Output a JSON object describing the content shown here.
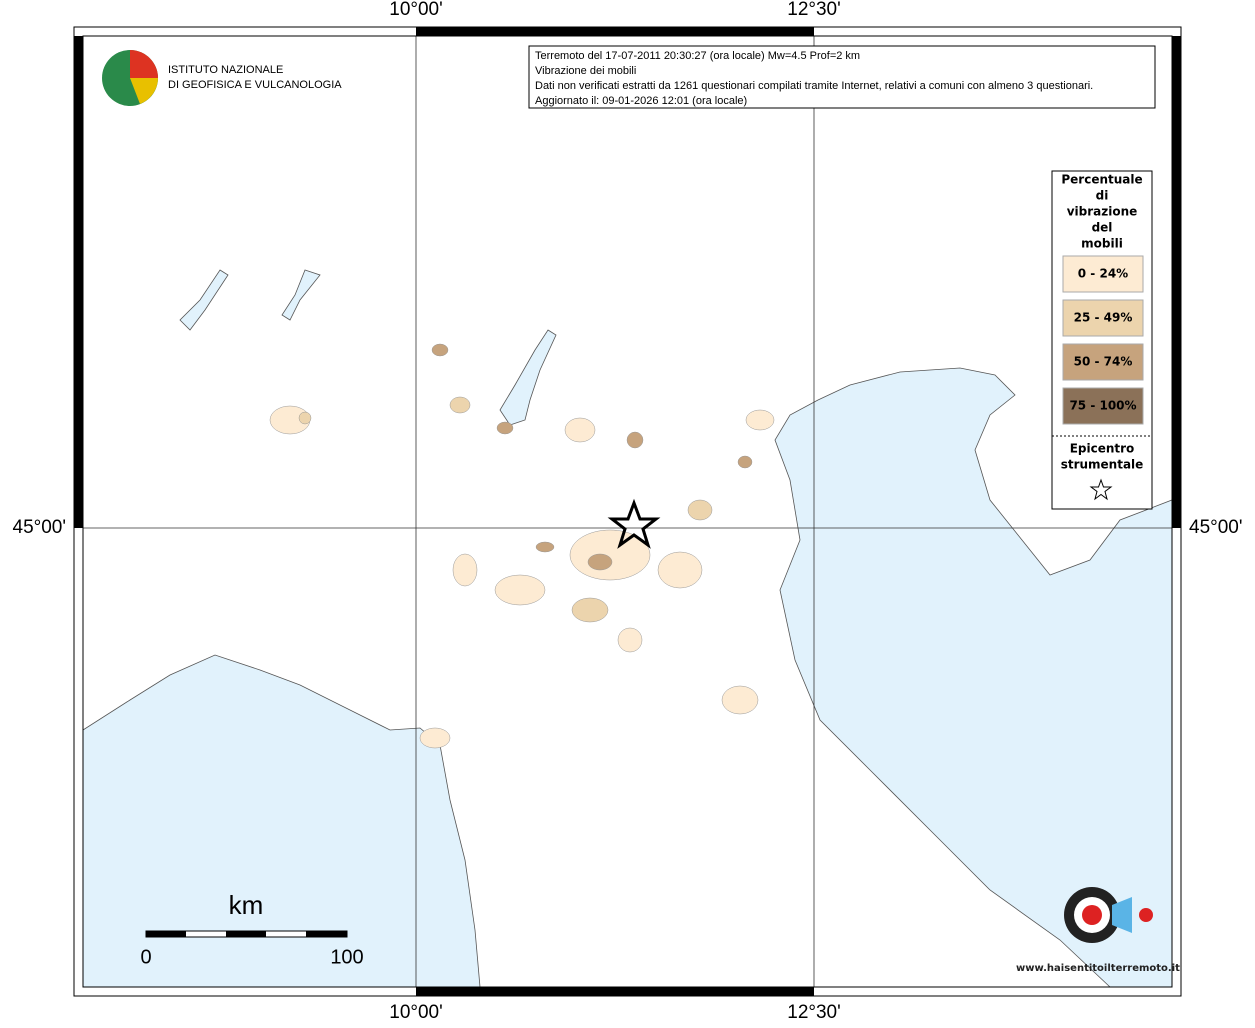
{
  "map": {
    "lon_labels": [
      "10°00'",
      "12°30'"
    ],
    "lat_label": "45°00'",
    "info": [
      "Terremoto del 17-07-2011 20:30:27 (ora locale) Mw=4.5 Prof=2 km",
      "Vibrazione dei mobili",
      "Dati non verificati estratti da 1261 questionari compilati tramite Internet, relativi a comuni con almeno 3 questionari.",
      "Aggiornato il: 09-01-2026 12:01 (ora locale)"
    ],
    "logo_lines": [
      "ISTITUTO NAZIONALE",
      "DI GEOFISICA E VULCANOLOGIA"
    ],
    "legend": {
      "title_lines": [
        "Percentuale",
        "di",
        "vibrazione",
        "del",
        "mobili"
      ],
      "items": [
        {
          "label": "0 - 24%",
          "color": "#fdebd3"
        },
        {
          "label": "25 - 49%",
          "color": "#ecd4ad"
        },
        {
          "label": "50 - 74%",
          "color": "#c6a37d"
        },
        {
          "label": "75 - 100%",
          "color": "#8b7158"
        }
      ],
      "epicenter_lines": [
        "Epicentro",
        "strumentale"
      ]
    },
    "scale": {
      "unit": "km",
      "start": "0",
      "end": "100"
    },
    "site_logo": "www.haisentitoilterremoto.it"
  }
}
